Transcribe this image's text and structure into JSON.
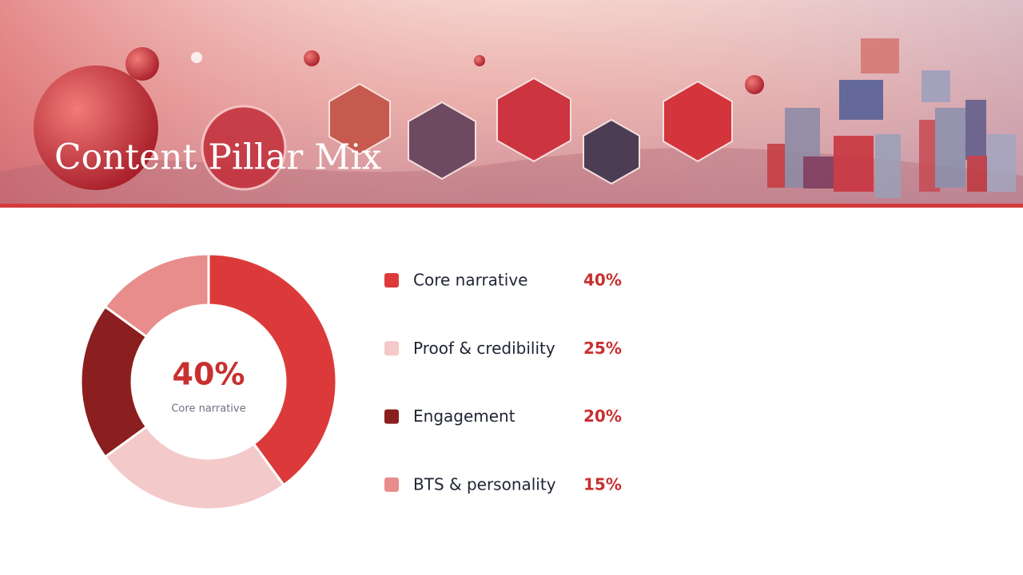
{
  "chart_data": {
    "type": "donut",
    "title": "Content Pillar Mix",
    "categories": [
      "Core narrative",
      "Proof & credibility",
      "Engagement",
      "BTS & personality"
    ],
    "values": [
      40,
      25,
      20,
      15
    ],
    "value_labels": [
      "40%",
      "25%",
      "20%",
      "15%"
    ],
    "colors": [
      "#dc3a3a",
      "#f4c9c9",
      "#8b1e1e",
      "#e88c8c"
    ]
  }
}
